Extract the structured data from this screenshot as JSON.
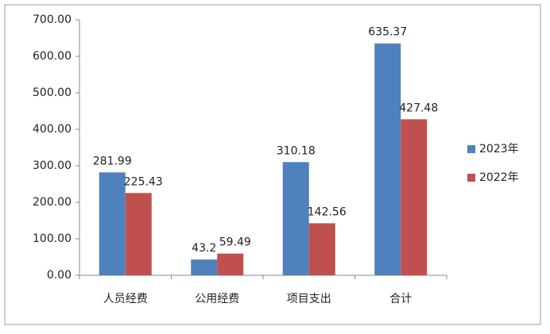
{
  "chart_data": {
    "type": "bar",
    "categories": [
      "人员经费",
      "公用经费",
      "项目支出",
      "合计"
    ],
    "series": [
      {
        "name": "2023年",
        "color": "#4f81bd",
        "values": [
          281.99,
          43.2,
          310.18,
          635.37
        ]
      },
      {
        "name": "2022年",
        "color": "#c0504d",
        "values": [
          225.43,
          59.49,
          142.56,
          427.48
        ]
      }
    ],
    "ylim": [
      0,
      700
    ],
    "yticks": [
      {
        "value": 0,
        "label": "0.00"
      },
      {
        "value": 100,
        "label": "100.00"
      },
      {
        "value": 200,
        "label": "200.00"
      },
      {
        "value": 300,
        "label": "300.00"
      },
      {
        "value": 400,
        "label": "400.00"
      },
      {
        "value": 500,
        "label": "500.00"
      },
      {
        "value": 600,
        "label": "600.00"
      },
      {
        "value": 700,
        "label": "700.00"
      }
    ],
    "grid": false,
    "legend": "right"
  }
}
